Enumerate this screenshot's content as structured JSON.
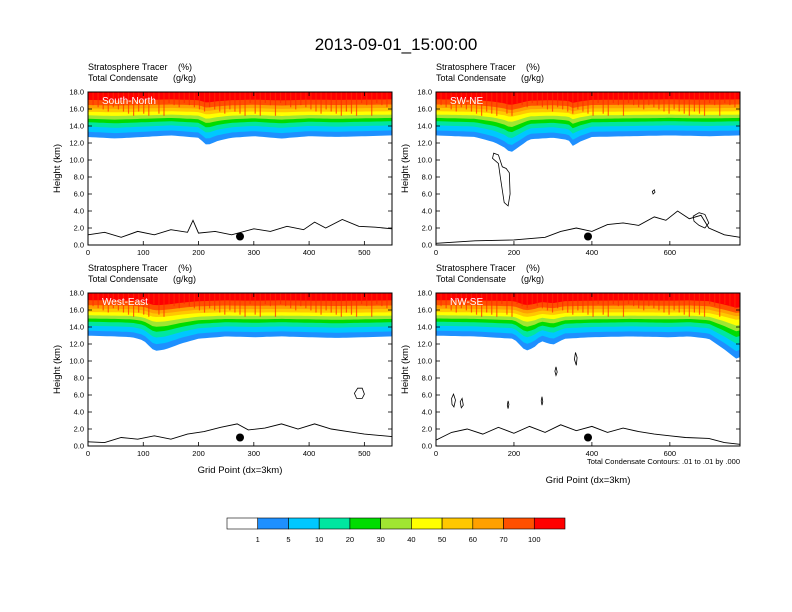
{
  "chart_data": {
    "type": "filled-contour",
    "title": "2013-09-01_15:00:00",
    "panels": [
      {
        "id": "south-north",
        "label": "South-North",
        "subtitle_left": "Stratosphere Tracer",
        "subtitle_units": "(%)",
        "subtitle2_left": "Total Condensate",
        "subtitle2_units": "(g/kg)",
        "xlim": [
          0,
          550
        ],
        "xticks": [
          "0",
          "100",
          "200",
          "300",
          "400",
          "500"
        ],
        "xtick_values": [
          0,
          100,
          200,
          300,
          400,
          500
        ],
        "ylim": [
          0,
          18
        ],
        "yticks": [
          "0.0",
          "2.0",
          "4.0",
          "6.0",
          "8.0",
          "10.0",
          "12.0",
          "14.0",
          "16.0",
          "18.0"
        ],
        "ylabel": "Height (km)",
        "xlabel": "",
        "point_marker": {
          "x": 275,
          "y": 1.0
        },
        "terrain_km": [
          [
            0,
            1.2
          ],
          [
            30,
            1.5
          ],
          [
            60,
            0.9
          ],
          [
            90,
            1.6
          ],
          [
            120,
            1.2
          ],
          [
            150,
            1.8
          ],
          [
            180,
            1.5
          ],
          [
            190,
            2.9
          ],
          [
            200,
            1.4
          ],
          [
            230,
            1.6
          ],
          [
            260,
            1.2
          ],
          [
            300,
            1.9
          ],
          [
            330,
            1.6
          ],
          [
            360,
            2.2
          ],
          [
            390,
            1.8
          ],
          [
            410,
            2.7
          ],
          [
            430,
            2.0
          ],
          [
            460,
            3.0
          ],
          [
            490,
            2.2
          ],
          [
            520,
            2.1
          ],
          [
            550,
            1.9
          ]
        ],
        "tracer_base_km": [
          [
            0,
            12.7
          ],
          [
            50,
            12.5
          ],
          [
            100,
            12.7
          ],
          [
            150,
            12.9
          ],
          [
            200,
            12.6
          ],
          [
            215,
            11.6
          ],
          [
            235,
            12.2
          ],
          [
            260,
            12.6
          ],
          [
            300,
            12.8
          ],
          [
            350,
            12.5
          ],
          [
            400,
            12.8
          ],
          [
            450,
            12.7
          ],
          [
            500,
            12.8
          ],
          [
            550,
            12.9
          ]
        ],
        "contours": []
      },
      {
        "id": "sw-ne",
        "label": "SW-NE",
        "subtitle_left": "Stratosphere Tracer",
        "subtitle_units": "(%)",
        "subtitle2_left": "Total Condensate",
        "subtitle2_units": "(g/kg)",
        "xlim": [
          0,
          780
        ],
        "xticks": [
          "0",
          "200",
          "400",
          "600"
        ],
        "xtick_values": [
          0,
          200,
          400,
          600
        ],
        "ylim": [
          0,
          18
        ],
        "yticks": [
          "0.0",
          "2.0",
          "4.0",
          "6.0",
          "8.0",
          "10.0",
          "12.0",
          "14.0",
          "16.0",
          "18.0"
        ],
        "ylabel": "Height (km)",
        "xlabel": "",
        "point_marker": {
          "x": 390,
          "y": 1.0
        },
        "terrain_km": [
          [
            0,
            0.2
          ],
          [
            100,
            0.5
          ],
          [
            200,
            0.6
          ],
          [
            280,
            0.9
          ],
          [
            320,
            1.6
          ],
          [
            360,
            2.0
          ],
          [
            400,
            1.6
          ],
          [
            440,
            2.4
          ],
          [
            480,
            2.6
          ],
          [
            520,
            2.3
          ],
          [
            560,
            3.3
          ],
          [
            590,
            2.9
          ],
          [
            620,
            4.0
          ],
          [
            650,
            3.1
          ],
          [
            680,
            3.5
          ],
          [
            700,
            2.0
          ],
          [
            740,
            1.2
          ],
          [
            780,
            0.9
          ]
        ],
        "tracer_base_km": [
          [
            0,
            12.9
          ],
          [
            100,
            12.7
          ],
          [
            150,
            12.0
          ],
          [
            180,
            11.2
          ],
          [
            190,
            10.6
          ],
          [
            210,
            11.3
          ],
          [
            240,
            12.4
          ],
          [
            300,
            12.6
          ],
          [
            340,
            12.3
          ],
          [
            350,
            11.5
          ],
          [
            370,
            12.1
          ],
          [
            400,
            12.7
          ],
          [
            500,
            12.8
          ],
          [
            600,
            12.9
          ],
          [
            700,
            12.8
          ],
          [
            780,
            12.9
          ]
        ],
        "contours": [
          {
            "kind": "closed",
            "points": [
              [
                145,
                10.2
              ],
              [
                160,
                9.6
              ],
              [
                165,
                8.0
              ],
              [
                175,
                5.0
              ],
              [
                185,
                4.6
              ],
              [
                190,
                6.0
              ],
              [
                188,
                8.5
              ],
              [
                180,
                9.0
              ],
              [
                170,
                9.2
              ],
              [
                160,
                10.6
              ],
              [
                148,
                10.8
              ]
            ]
          },
          {
            "kind": "closed",
            "points": [
              [
                555,
                6.3
              ],
              [
                560,
                6.5
              ],
              [
                562,
                6.2
              ],
              [
                557,
                6.0
              ]
            ]
          },
          {
            "kind": "closed",
            "points": [
              [
                660,
                3.4
              ],
              [
                675,
                3.8
              ],
              [
                690,
                3.6
              ],
              [
                700,
                2.6
              ],
              [
                690,
                2.0
              ],
              [
                675,
                2.3
              ],
              [
                662,
                2.8
              ]
            ]
          }
        ]
      },
      {
        "id": "west-east",
        "label": "West-East",
        "subtitle_left": "Stratosphere Tracer",
        "subtitle_units": "(%)",
        "subtitle2_left": "Total Condensate",
        "subtitle2_units": "(g/kg)",
        "xlim": [
          0,
          550
        ],
        "xticks": [
          "0",
          "100",
          "200",
          "300",
          "400",
          "500"
        ],
        "xtick_values": [
          0,
          100,
          200,
          300,
          400,
          500
        ],
        "ylim": [
          0,
          18
        ],
        "yticks": [
          "0.0",
          "2.0",
          "4.0",
          "6.0",
          "8.0",
          "10.0",
          "12.0",
          "14.0",
          "16.0",
          "18.0"
        ],
        "ylabel": "Height (km)",
        "xlabel": "Grid Point (dx=3km)",
        "point_marker": {
          "x": 275,
          "y": 1.0
        },
        "terrain_km": [
          [
            0,
            0.5
          ],
          [
            30,
            0.4
          ],
          [
            60,
            1.0
          ],
          [
            90,
            0.8
          ],
          [
            120,
            1.2
          ],
          [
            150,
            0.8
          ],
          [
            180,
            1.4
          ],
          [
            210,
            1.7
          ],
          [
            240,
            2.2
          ],
          [
            270,
            2.6
          ],
          [
            290,
            1.9
          ],
          [
            320,
            2.1
          ],
          [
            350,
            2.6
          ],
          [
            380,
            2.0
          ],
          [
            410,
            2.6
          ],
          [
            440,
            2.0
          ],
          [
            470,
            1.7
          ],
          [
            500,
            1.4
          ],
          [
            550,
            1.1
          ]
        ],
        "tracer_base_km": [
          [
            0,
            13.0
          ],
          [
            50,
            12.9
          ],
          [
            80,
            12.8
          ],
          [
            100,
            12.4
          ],
          [
            120,
            11.0
          ],
          [
            140,
            11.2
          ],
          [
            170,
            12.0
          ],
          [
            200,
            12.6
          ],
          [
            250,
            12.9
          ],
          [
            300,
            12.8
          ],
          [
            350,
            12.9
          ],
          [
            400,
            12.8
          ],
          [
            450,
            12.7
          ],
          [
            500,
            12.8
          ],
          [
            550,
            12.9
          ]
        ],
        "contours": [
          {
            "kind": "closed",
            "points": [
              [
                482,
                6.2
              ],
              [
                488,
                6.8
              ],
              [
                496,
                6.8
              ],
              [
                500,
                6.1
              ],
              [
                496,
                5.6
              ],
              [
                486,
                5.6
              ]
            ]
          }
        ]
      },
      {
        "id": "nw-se",
        "label": "NW-SE",
        "subtitle_left": "Stratosphere Tracer",
        "subtitle_units": "(%)",
        "subtitle2_left": "Total Condensate",
        "subtitle2_units": "(g/kg)",
        "xlim": [
          0,
          780
        ],
        "xticks": [
          "0",
          "200",
          "400",
          "600"
        ],
        "xtick_values": [
          0,
          200,
          400,
          600
        ],
        "ylim": [
          0,
          18
        ],
        "yticks": [
          "0.0",
          "2.0",
          "4.0",
          "6.0",
          "8.0",
          "10.0",
          "12.0",
          "14.0",
          "16.0",
          "18.0"
        ],
        "ylabel": "Height (km)",
        "xlabel": "Grid Point (dx=3km)",
        "footnote": "Total Condensate Contours: .01 to .01 by .000",
        "point_marker": {
          "x": 390,
          "y": 1.0
        },
        "terrain_km": [
          [
            0,
            0.7
          ],
          [
            40,
            1.6
          ],
          [
            80,
            2.0
          ],
          [
            120,
            1.4
          ],
          [
            160,
            2.2
          ],
          [
            200,
            1.5
          ],
          [
            240,
            2.3
          ],
          [
            280,
            1.6
          ],
          [
            320,
            2.5
          ],
          [
            360,
            1.8
          ],
          [
            400,
            2.3
          ],
          [
            440,
            1.6
          ],
          [
            480,
            2.1
          ],
          [
            520,
            1.7
          ],
          [
            560,
            1.4
          ],
          [
            600,
            1.2
          ],
          [
            640,
            1.0
          ],
          [
            700,
            0.9
          ],
          [
            740,
            0.4
          ],
          [
            780,
            0.2
          ]
        ],
        "tracer_base_km": [
          [
            0,
            13.0
          ],
          [
            100,
            12.9
          ],
          [
            200,
            12.6
          ],
          [
            230,
            11.0
          ],
          [
            250,
            11.4
          ],
          [
            270,
            12.3
          ],
          [
            300,
            11.8
          ],
          [
            330,
            12.6
          ],
          [
            400,
            12.8
          ],
          [
            500,
            12.9
          ],
          [
            600,
            12.8
          ],
          [
            650,
            12.9
          ],
          [
            700,
            12.6
          ],
          [
            740,
            11.2
          ],
          [
            770,
            10.0
          ],
          [
            780,
            10.2
          ]
        ],
        "contours": [
          {
            "kind": "closed",
            "points": [
              [
                40,
                5.6
              ],
              [
                45,
                6.1
              ],
              [
                50,
                5.4
              ],
              [
                46,
                4.6
              ],
              [
                41,
                4.9
              ]
            ]
          },
          {
            "kind": "closed",
            "points": [
              [
                62,
                5.2
              ],
              [
                67,
                5.6
              ],
              [
                70,
                4.8
              ],
              [
                65,
                4.5
              ]
            ]
          },
          {
            "kind": "closed",
            "points": [
              [
                355,
                10.2
              ],
              [
                358,
                11.0
              ],
              [
                362,
                10.4
              ],
              [
                360,
                9.5
              ]
            ]
          },
          {
            "kind": "closed",
            "points": [
              [
                305,
                8.8
              ],
              [
                308,
                9.3
              ],
              [
                311,
                8.7
              ],
              [
                308,
                8.3
              ]
            ]
          },
          {
            "kind": "closed",
            "points": [
              [
                270,
                5.3
              ],
              [
                272,
                5.8
              ],
              [
                274,
                5.2
              ],
              [
                272,
                4.8
              ]
            ]
          },
          {
            "kind": "closed",
            "points": [
              [
                183,
                4.8
              ],
              [
                185,
                5.3
              ],
              [
                187,
                4.9
              ],
              [
                185,
                4.4
              ]
            ]
          }
        ]
      }
    ],
    "colorbar": {
      "levels": [
        "1",
        "5",
        "10",
        "20",
        "30",
        "40",
        "50",
        "60",
        "70",
        "100"
      ],
      "colors": [
        "#ffffff",
        "#1e90ff",
        "#00c8ff",
        "#00e6a0",
        "#00dc00",
        "#a0e632",
        "#ffff00",
        "#ffc800",
        "#ffa000",
        "#ff5000",
        "#ff0000"
      ],
      "units": "%"
    }
  }
}
